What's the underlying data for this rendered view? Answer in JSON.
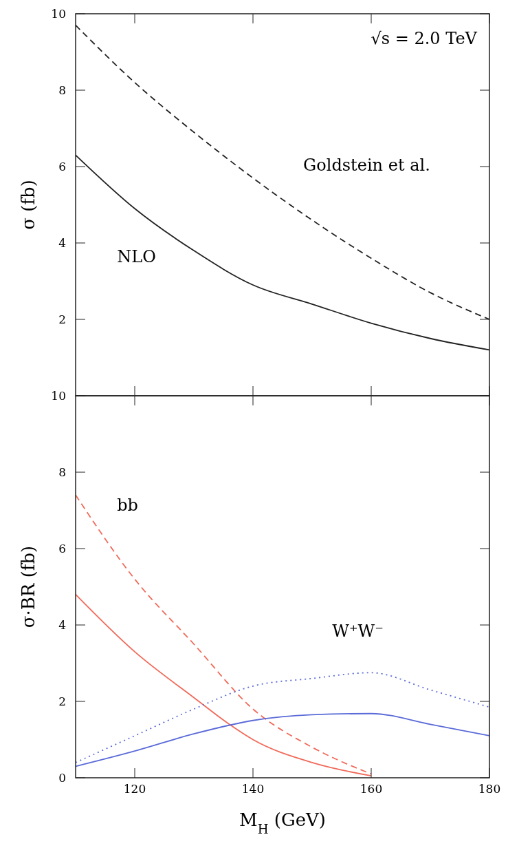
{
  "chart_data": [
    {
      "type": "line",
      "x": [
        110,
        120,
        130,
        140,
        150,
        160,
        170,
        180
      ],
      "xlim": [
        110,
        180
      ],
      "xticks": [
        120,
        140,
        160,
        180
      ],
      "ylim": [
        0,
        10
      ],
      "yticks": [
        {
          "value": 0,
          "label": null
        },
        2,
        4,
        6,
        8,
        10
      ],
      "tick_labels": "y",
      "ylabel": "σ (fb)",
      "annotations": [
        "√s = 2.0 TeV",
        "Goldstein et al.",
        "NLO"
      ],
      "series": [
        {
          "color": "#222222",
          "line_style": "dashed",
          "values": [
            9.7,
            8.2,
            6.9,
            5.7,
            4.6,
            3.6,
            2.7,
            2.0
          ]
        },
        {
          "color": "#222222",
          "line_style": "solid",
          "values": [
            6.3,
            4.9,
            3.8,
            2.9,
            2.4,
            1.9,
            1.5,
            1.2
          ]
        }
      ]
    },
    {
      "type": "line",
      "x": [
        110,
        120,
        130,
        140,
        150,
        160,
        170,
        180
      ],
      "xlim": [
        110,
        180
      ],
      "xticks": [
        120,
        140,
        160,
        180
      ],
      "ylim": [
        0,
        10
      ],
      "yticks": [
        0,
        2,
        4,
        6,
        8,
        10
      ],
      "xlabel": "M$_{H}$ (GeV)",
      "ylabel": "σ·BR (fb)",
      "annotations": [
        "bb",
        "W⁺W⁻"
      ],
      "series": [
        {
          "color": "#f06a5a",
          "line_style": "dashed",
          "x": [
            110,
            120,
            130,
            140,
            150,
            160
          ],
          "values": [
            7.4,
            5.2,
            3.5,
            1.8,
            0.8,
            0.1
          ]
        },
        {
          "color": "#f06a5a",
          "line_style": "solid",
          "x": [
            110,
            120,
            130,
            136,
            140,
            150,
            160
          ],
          "values": [
            4.8,
            3.3,
            2.1,
            1.4,
            1.0,
            0.4,
            0.05
          ]
        },
        {
          "color": "#5a6ad8",
          "line_style": "dotted",
          "values": [
            0.4,
            1.1,
            1.8,
            2.4,
            2.6,
            2.75,
            2.3,
            1.85
          ]
        },
        {
          "color": "#5a6ad8",
          "line_style": "solid",
          "values": [
            0.3,
            0.7,
            1.15,
            1.5,
            1.65,
            1.68,
            1.4,
            1.1
          ]
        }
      ]
    }
  ]
}
